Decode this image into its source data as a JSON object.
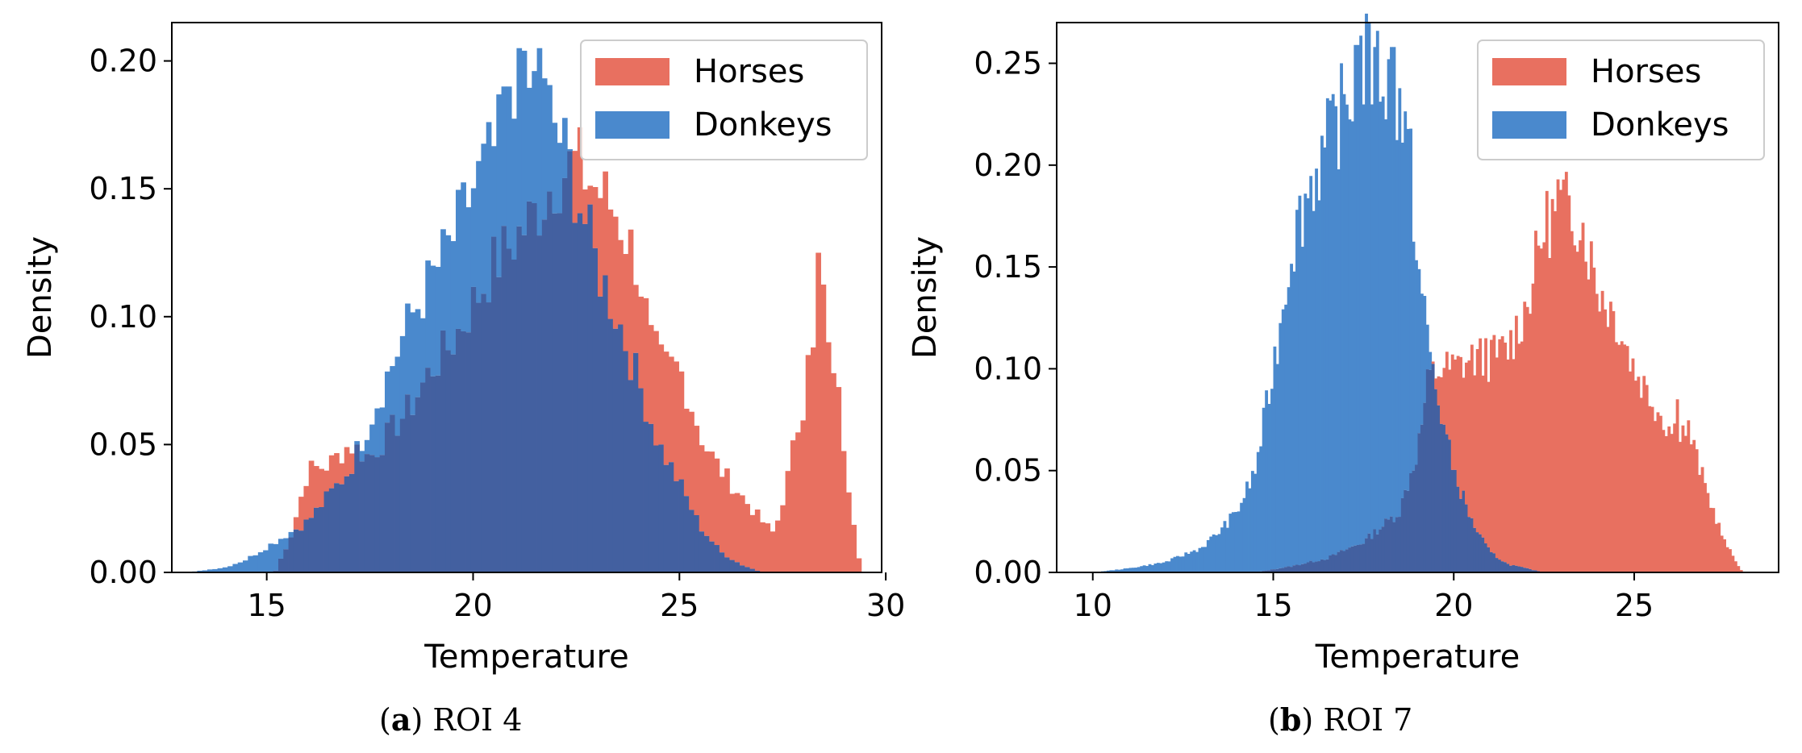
{
  "chart_data": [
    {
      "type": "histogram",
      "caption_label": "a",
      "caption_text": "ROI 4",
      "xlabel": "Temperature",
      "ylabel": "Density",
      "xlim": [
        12.7,
        29.9
      ],
      "ylim": [
        0,
        0.215
      ],
      "xticks": [
        15,
        20,
        25,
        30
      ],
      "yticks": [
        0.0,
        0.05,
        0.1,
        0.15,
        0.2
      ],
      "legend_position": "top-right",
      "overlap_color": "#4360a0",
      "series": [
        {
          "name": "Horses",
          "color": "#e87060",
          "range": [
            15.2,
            29.4
          ],
          "keypoints": [
            [
              15.2,
              0.0
            ],
            [
              15.6,
              0.015
            ],
            [
              16.0,
              0.04
            ],
            [
              16.5,
              0.042
            ],
            [
              17.0,
              0.05
            ],
            [
              17.5,
              0.045
            ],
            [
              18.0,
              0.055
            ],
            [
              18.5,
              0.065
            ],
            [
              19.0,
              0.08
            ],
            [
              19.5,
              0.09
            ],
            [
              20.0,
              0.105
            ],
            [
              20.5,
              0.12
            ],
            [
              21.0,
              0.13
            ],
            [
              21.5,
              0.14
            ],
            [
              22.0,
              0.155
            ],
            [
              22.5,
              0.16
            ],
            [
              23.0,
              0.15
            ],
            [
              23.5,
              0.14
            ],
            [
              24.0,
              0.12
            ],
            [
              24.3,
              0.09
            ],
            [
              24.6,
              0.08
            ],
            [
              25.0,
              0.08
            ],
            [
              25.3,
              0.065
            ],
            [
              25.6,
              0.05
            ],
            [
              26.0,
              0.04
            ],
            [
              26.5,
              0.03
            ],
            [
              27.0,
              0.02
            ],
            [
              27.3,
              0.015
            ],
            [
              27.6,
              0.035
            ],
            [
              27.9,
              0.06
            ],
            [
              28.2,
              0.08
            ],
            [
              28.5,
              0.11
            ],
            [
              28.8,
              0.075
            ],
            [
              29.1,
              0.035
            ],
            [
              29.4,
              0.0
            ]
          ],
          "spikes": [
            [
              28.4,
              0.125
            ],
            [
              28.6,
              0.09
            ],
            [
              28.1,
              0.085
            ]
          ]
        },
        {
          "name": "Donkeys",
          "color": "#4a89cd",
          "range": [
            13.1,
            27.0
          ],
          "keypoints": [
            [
              13.1,
              0.0
            ],
            [
              14.0,
              0.002
            ],
            [
              14.5,
              0.005
            ],
            [
              15.0,
              0.01
            ],
            [
              15.5,
              0.015
            ],
            [
              16.0,
              0.02
            ],
            [
              16.5,
              0.03
            ],
            [
              17.0,
              0.04
            ],
            [
              17.5,
              0.06
            ],
            [
              18.0,
              0.08
            ],
            [
              18.5,
              0.1
            ],
            [
              19.0,
              0.115
            ],
            [
              19.5,
              0.13
            ],
            [
              20.0,
              0.15
            ],
            [
              20.5,
              0.165
            ],
            [
              21.0,
              0.18
            ],
            [
              21.5,
              0.19
            ],
            [
              22.0,
              0.175
            ],
            [
              22.5,
              0.15
            ],
            [
              23.0,
              0.12
            ],
            [
              23.5,
              0.1
            ],
            [
              24.0,
              0.075
            ],
            [
              24.5,
              0.05
            ],
            [
              25.0,
              0.035
            ],
            [
              25.5,
              0.018
            ],
            [
              26.0,
              0.008
            ],
            [
              26.5,
              0.003
            ],
            [
              27.0,
              0.0
            ]
          ],
          "spikes": [
            [
              21.1,
              0.205
            ],
            [
              21.6,
              0.205
            ],
            [
              20.8,
              0.19
            ]
          ]
        }
      ]
    },
    {
      "type": "histogram",
      "caption_label": "b",
      "caption_text": "ROI 7",
      "xlabel": "Temperature",
      "ylabel": "Density",
      "xlim": [
        9.0,
        29.0
      ],
      "ylim": [
        0,
        0.27
      ],
      "xticks": [
        10,
        15,
        20,
        25
      ],
      "yticks": [
        0.0,
        0.05,
        0.1,
        0.15,
        0.2,
        0.25
      ],
      "legend_position": "top-right",
      "overlap_color": "#4360a0",
      "series": [
        {
          "name": "Horses",
          "color": "#e87060",
          "range": [
            14.5,
            28.0
          ],
          "keypoints": [
            [
              14.5,
              0.0
            ],
            [
              15.5,
              0.003
            ],
            [
              16.5,
              0.007
            ],
            [
              17.5,
              0.015
            ],
            [
              18.5,
              0.03
            ],
            [
              19.0,
              0.06
            ],
            [
              19.3,
              0.095
            ],
            [
              19.6,
              0.1
            ],
            [
              20.0,
              0.1
            ],
            [
              20.5,
              0.105
            ],
            [
              21.0,
              0.105
            ],
            [
              21.5,
              0.11
            ],
            [
              22.0,
              0.13
            ],
            [
              22.5,
              0.17
            ],
            [
              23.0,
              0.18
            ],
            [
              23.5,
              0.175
            ],
            [
              24.0,
              0.14
            ],
            [
              24.5,
              0.125
            ],
            [
              25.0,
              0.1
            ],
            [
              25.5,
              0.085
            ],
            [
              26.0,
              0.07
            ],
            [
              26.5,
              0.07
            ],
            [
              27.0,
              0.04
            ],
            [
              27.5,
              0.015
            ],
            [
              28.0,
              0.0
            ]
          ],
          "spikes": [
            [
              22.9,
              0.193
            ],
            [
              26.2,
              0.085
            ],
            [
              20.9,
              0.115
            ]
          ]
        },
        {
          "name": "Donkeys",
          "color": "#4a89cd",
          "range": [
            10.0,
            22.5
          ],
          "keypoints": [
            [
              10.0,
              0.0
            ],
            [
              11.0,
              0.002
            ],
            [
              12.0,
              0.005
            ],
            [
              13.0,
              0.012
            ],
            [
              13.5,
              0.02
            ],
            [
              14.0,
              0.03
            ],
            [
              14.5,
              0.05
            ],
            [
              15.0,
              0.1
            ],
            [
              15.5,
              0.16
            ],
            [
              16.0,
              0.19
            ],
            [
              16.5,
              0.21
            ],
            [
              17.0,
              0.23
            ],
            [
              17.5,
              0.25
            ],
            [
              18.0,
              0.245
            ],
            [
              18.5,
              0.23
            ],
            [
              18.8,
              0.2
            ],
            [
              19.0,
              0.15
            ],
            [
              19.5,
              0.09
            ],
            [
              20.0,
              0.05
            ],
            [
              20.5,
              0.025
            ],
            [
              21.0,
              0.01
            ],
            [
              21.5,
              0.004
            ],
            [
              22.5,
              0.0
            ]
          ],
          "spikes": [
            [
              17.3,
              0.259
            ],
            [
              17.8,
              0.258
            ],
            [
              18.3,
              0.258
            ]
          ]
        }
      ]
    }
  ]
}
